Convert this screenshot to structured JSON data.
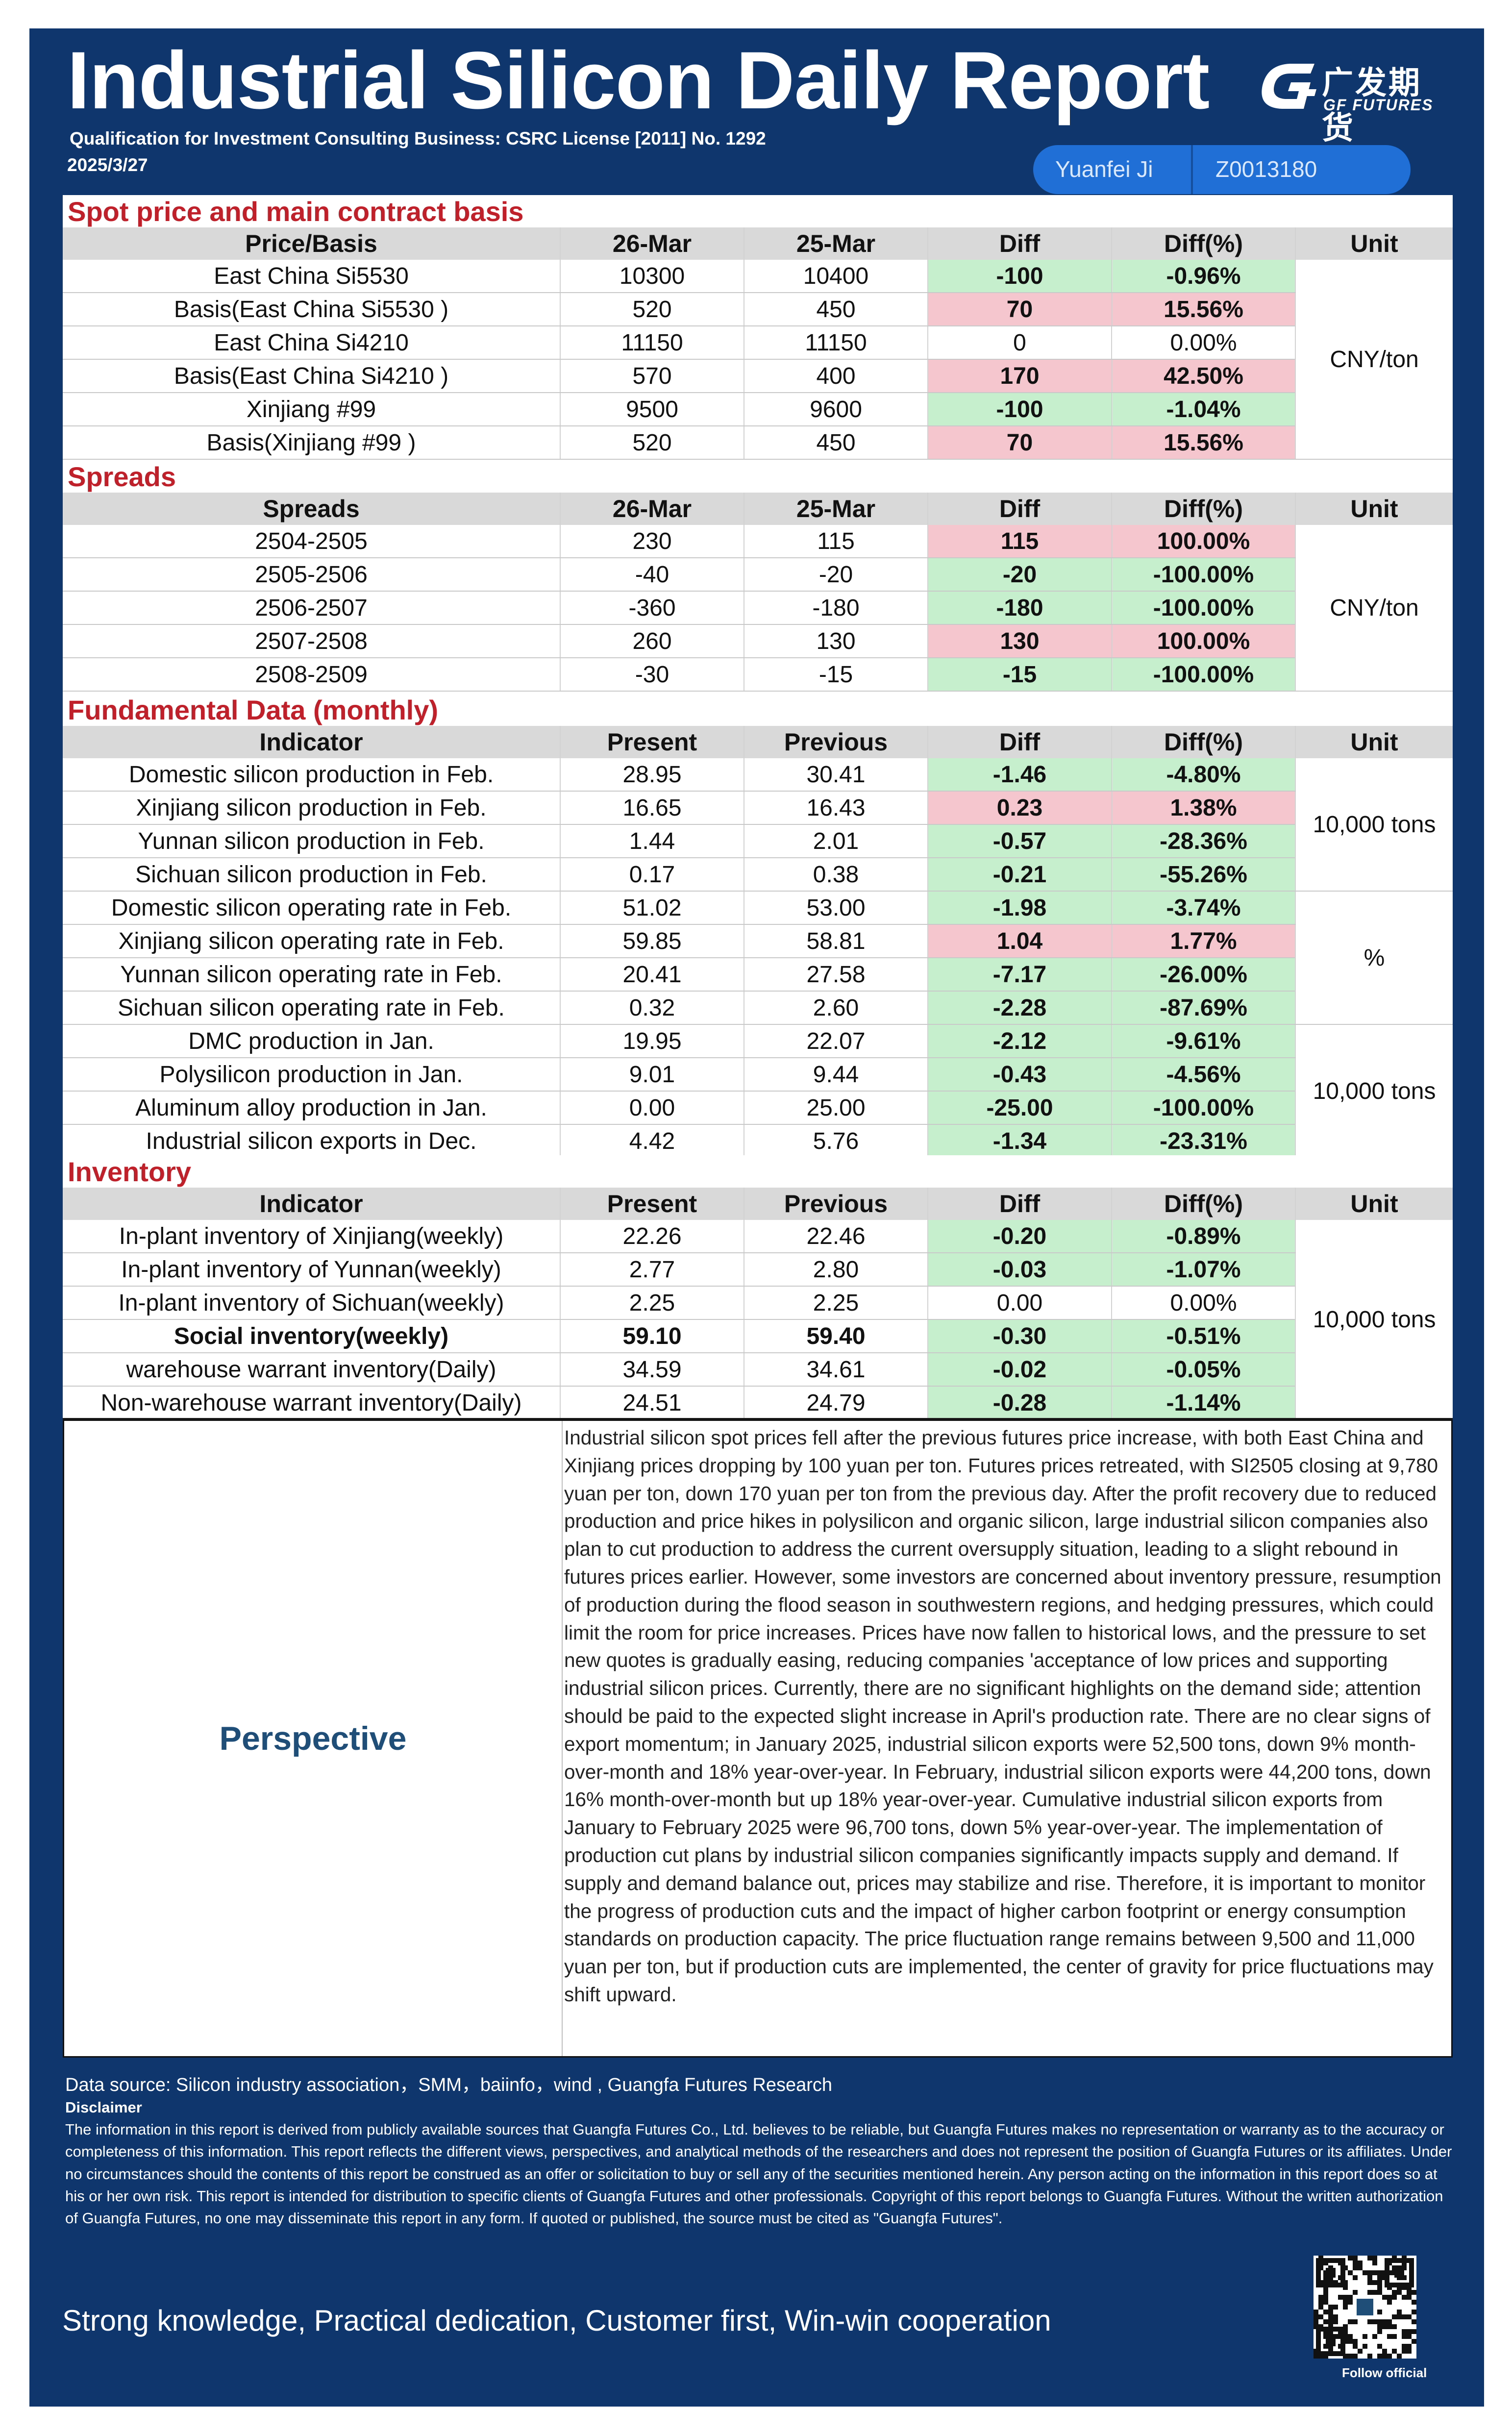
{
  "header": {
    "title": "Industrial Silicon Daily Report",
    "qualification": "Qualification for Investment Consulting Business: CSRC License [2011] No. 1292",
    "date": "2025/3/27",
    "logo_cn": "广发期货",
    "logo_en": "GF FUTURES",
    "analyst": "Yuanfei Ji",
    "license_id": "Z0013180"
  },
  "spot": {
    "section_title": "Spot price and main contract basis",
    "headers": [
      "Price/Basis",
      "26-Mar",
      "25-Mar",
      "Diff",
      "Diff(%)",
      "Unit"
    ],
    "unit": "CNY/ton",
    "rows": [
      {
        "label": "East China Si5530",
        "a": "10300",
        "b": "10400",
        "diff": "-100",
        "pct": "-0.96%",
        "sign": "neg"
      },
      {
        "label": "Basis(East China Si5530 )",
        "a": "520",
        "b": "450",
        "diff": "70",
        "pct": "15.56%",
        "sign": "pos"
      },
      {
        "label": "East China Si4210",
        "a": "11150",
        "b": "11150",
        "diff": "0",
        "pct": "0.00%",
        "sign": "zero"
      },
      {
        "label": "Basis(East China Si4210 )",
        "a": "570",
        "b": "400",
        "diff": "170",
        "pct": "42.50%",
        "sign": "pos"
      },
      {
        "label": "Xinjiang #99",
        "a": "9500",
        "b": "9600",
        "diff": "-100",
        "pct": "-1.04%",
        "sign": "neg"
      },
      {
        "label": "Basis(Xinjiang #99 )",
        "a": "520",
        "b": "450",
        "diff": "70",
        "pct": "15.56%",
        "sign": "pos"
      }
    ]
  },
  "spreads": {
    "section_title": "Spreads",
    "headers": [
      "Spreads",
      "26-Mar",
      "25-Mar",
      "Diff",
      "Diff(%)",
      "Unit"
    ],
    "unit": "CNY/ton",
    "rows": [
      {
        "label": "2504-2505",
        "a": "230",
        "b": "115",
        "diff": "115",
        "pct": "100.00%",
        "sign": "pos"
      },
      {
        "label": "2505-2506",
        "a": "-40",
        "b": "-20",
        "diff": "-20",
        "pct": "-100.00%",
        "sign": "neg"
      },
      {
        "label": "2506-2507",
        "a": "-360",
        "b": "-180",
        "diff": "-180",
        "pct": "-100.00%",
        "sign": "neg"
      },
      {
        "label": "2507-2508",
        "a": "260",
        "b": "130",
        "diff": "130",
        "pct": "100.00%",
        "sign": "pos"
      },
      {
        "label": "2508-2509",
        "a": "-30",
        "b": "-15",
        "diff": "-15",
        "pct": "-100.00%",
        "sign": "neg"
      }
    ]
  },
  "fundamental": {
    "section_title": "Fundamental Data (monthly)",
    "headers": [
      "Indicator",
      "Present",
      "Previous",
      "Diff",
      "Diff(%)",
      "Unit"
    ],
    "unit_a": "10,000 tons",
    "unit_b": "%",
    "unit_c": "10,000 tons",
    "rows": [
      {
        "label": "Domestic silicon production in Feb.",
        "a": "28.95",
        "b": "30.41",
        "diff": "-1.46",
        "pct": "-4.80%",
        "sign": "neg"
      },
      {
        "label": "Xinjiang silicon production in Feb.",
        "a": "16.65",
        "b": "16.43",
        "diff": "0.23",
        "pct": "1.38%",
        "sign": "pos"
      },
      {
        "label": "Yunnan silicon production in Feb.",
        "a": "1.44",
        "b": "2.01",
        "diff": "-0.57",
        "pct": "-28.36%",
        "sign": "neg"
      },
      {
        "label": "Sichuan silicon production in Feb.",
        "a": "0.17",
        "b": "0.38",
        "diff": "-0.21",
        "pct": "-55.26%",
        "sign": "neg"
      },
      {
        "label": "Domestic silicon operating rate in Feb.",
        "a": "51.02",
        "b": "53.00",
        "diff": "-1.98",
        "pct": "-3.74%",
        "sign": "neg"
      },
      {
        "label": "Xinjiang silicon operating rate in Feb.",
        "a": "59.85",
        "b": "58.81",
        "diff": "1.04",
        "pct": "1.77%",
        "sign": "pos"
      },
      {
        "label": "Yunnan silicon operating rate in Feb.",
        "a": "20.41",
        "b": "27.58",
        "diff": "-7.17",
        "pct": "-26.00%",
        "sign": "neg"
      },
      {
        "label": "Sichuan silicon operating rate in Feb.",
        "a": "0.32",
        "b": "2.60",
        "diff": "-2.28",
        "pct": "-87.69%",
        "sign": "neg"
      },
      {
        "label": "DMC production in Jan.",
        "a": "19.95",
        "b": "22.07",
        "diff": "-2.12",
        "pct": "-9.61%",
        "sign": "neg"
      },
      {
        "label": "Polysilicon production in Jan.",
        "a": "9.01",
        "b": "9.44",
        "diff": "-0.43",
        "pct": "-4.56%",
        "sign": "neg"
      },
      {
        "label": "Aluminum alloy production in Jan.",
        "a": "0.00",
        "b": "25.00",
        "diff": "-25.00",
        "pct": "-100.00%",
        "sign": "neg"
      },
      {
        "label": "Industrial silicon exports in Dec.",
        "a": "4.42",
        "b": "5.76",
        "diff": "-1.34",
        "pct": "-23.31%",
        "sign": "neg"
      }
    ]
  },
  "inventory": {
    "section_title": "Inventory",
    "headers": [
      "Indicator",
      "Present",
      "Previous",
      "Diff",
      "Diff(%)",
      "Unit"
    ],
    "unit": "10,000 tons",
    "rows": [
      {
        "label": "In-plant inventory of Xinjiang(weekly)",
        "a": "22.26",
        "b": "22.46",
        "diff": "-0.20",
        "pct": "-0.89%",
        "sign": "neg"
      },
      {
        "label": "In-plant inventory of Yunnan(weekly)",
        "a": "2.77",
        "b": "2.80",
        "diff": "-0.03",
        "pct": "-1.07%",
        "sign": "neg"
      },
      {
        "label": "In-plant inventory of Sichuan(weekly)",
        "a": "2.25",
        "b": "2.25",
        "diff": "0.00",
        "pct": "0.00%",
        "sign": "zero"
      },
      {
        "label": "Social inventory(weekly)",
        "a": "59.10",
        "b": "59.40",
        "diff": "-0.30",
        "pct": "-0.51%",
        "sign": "neg",
        "bold": true
      },
      {
        "label": "warehouse warrant inventory(Daily)",
        "a": "34.59",
        "b": "34.61",
        "diff": "-0.02",
        "pct": "-0.05%",
        "sign": "neg"
      },
      {
        "label": "Non-warehouse warrant inventory(Daily)",
        "a": "24.51",
        "b": "24.79",
        "diff": "-0.28",
        "pct": "-1.14%",
        "sign": "neg"
      }
    ]
  },
  "perspective": {
    "label": "Perspective",
    "text": "Industrial silicon spot prices fell after the previous futures price increase, with both East China and Xinjiang prices dropping by 100 yuan per ton. Futures prices retreated, with SI2505 closing at 9,780 yuan per ton, down 170 yuan per ton from the previous day. After the profit recovery due to reduced production and price hikes in polysilicon and organic silicon, large industrial silicon companies also plan to cut production to address the current oversupply situation, leading to a slight rebound in futures prices earlier. However, some investors are concerned about inventory pressure, resumption of production during the flood season in southwestern regions, and hedging pressures, which could limit the room for price increases. Prices have now fallen to historical lows, and the pressure to set new quotes is gradually easing, reducing companies 'acceptance of low prices and supporting industrial silicon prices. Currently, there are no significant highlights on the demand side; attention should be paid to the expected slight increase in April's production rate. There are no clear signs of export momentum; in January 2025, industrial silicon exports were 52,500 tons, down 9% month-over-month and 18% year-over-year. In February, industrial silicon exports were 44,200 tons, down 16% month-over-month but up 18% year-over-year. Cumulative industrial silicon exports from January to February 2025 were 96,700 tons, down 5% year-over-year. The implementation of production cut plans by industrial silicon companies significantly impacts supply and demand. If supply and demand balance out, prices may stabilize and rise. Therefore, it is important to monitor the progress of production cuts and the impact of higher carbon footprint or energy consumption standards on production capacity. The price fluctuation range remains between 9,500 and 11,000 yuan per ton, but if production cuts are implemented, the center of gravity for price fluctuations may shift upward."
  },
  "footer": {
    "source": "Data source: Silicon industry association，SMM，baiinfo，wind , Guangfa Futures Research",
    "disclaimer_title": "Disclaimer",
    "disclaimer_text": "The information in this report is derived from publicly available sources that Guangfa Futures Co., Ltd. believes to be reliable, but Guangfa Futures makes no representation or warranty as to the accuracy or completeness of this information. This report reflects the different views, perspectives, and analytical methods of the researchers and does not represent the position of Guangfa Futures or its affiliates. Under no circumstances should the contents of this report be construed as an offer or solicitation to buy or sell any of the securities mentioned herein. Any person acting on the information in this report does so at his or her own risk. This report is intended for distribution to specific clients of Guangfa Futures and other professionals. Copyright of this report belongs to Guangfa Futures. Without the written authorization of Guangfa Futures, no one may disseminate this report in any form. If quoted or published, the source must be cited as \"Guangfa Futures\".",
    "slogan": "Strong knowledge, Practical dedication, Customer first, Win-win cooperation",
    "follow": "Follow official"
  }
}
